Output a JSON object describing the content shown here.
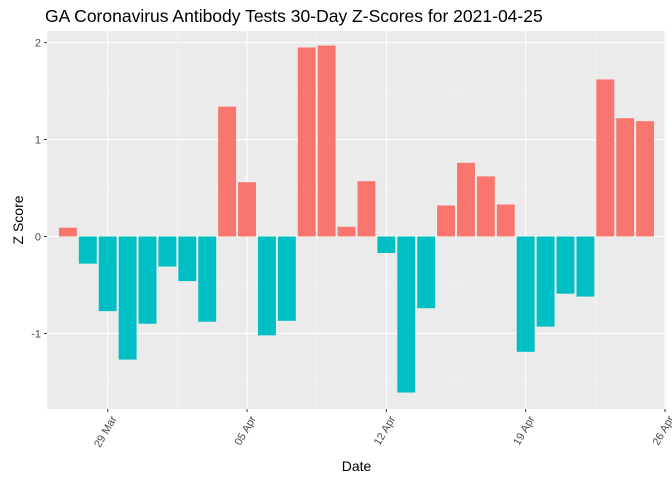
{
  "chart_data": {
    "type": "bar",
    "title": "GA Coronavirus Antibody Tests 30-Day Z-Scores for 2021-04-25",
    "xlabel": "Date",
    "ylabel": "Z Score",
    "x_ticks": [
      "29 Mar",
      "05 Apr",
      "12 Apr",
      "19 Apr",
      "26 Apr"
    ],
    "y_ticks": [
      -1,
      0,
      1,
      2
    ],
    "ylim": [
      -1.78,
      2.12
    ],
    "grid": true,
    "legend": "none",
    "categories": [
      "2021-03-27",
      "2021-03-28",
      "2021-03-29",
      "2021-03-30",
      "2021-03-31",
      "2021-04-01",
      "2021-04-02",
      "2021-04-03",
      "2021-04-04",
      "2021-04-05",
      "2021-04-06",
      "2021-04-07",
      "2021-04-08",
      "2021-04-09",
      "2021-04-10",
      "2021-04-11",
      "2021-04-12",
      "2021-04-13",
      "2021-04-14",
      "2021-04-15",
      "2021-04-16",
      "2021-04-17",
      "2021-04-18",
      "2021-04-19",
      "2021-04-20",
      "2021-04-21",
      "2021-04-22",
      "2021-04-23",
      "2021-04-24",
      "2021-04-25"
    ],
    "values": [
      0.09,
      -0.28,
      -0.77,
      -1.27,
      -0.9,
      -0.31,
      -0.46,
      -0.88,
      1.34,
      0.56,
      -1.02,
      -0.87,
      1.95,
      1.97,
      0.1,
      0.57,
      -0.17,
      -1.61,
      -0.74,
      0.32,
      0.76,
      0.62,
      0.33,
      -1.19,
      -0.93,
      -0.59,
      -0.62,
      1.62,
      1.22,
      1.19
    ],
    "colors": {
      "positive": "#F8766D",
      "negative": "#00BFC4",
      "panel": "#EBEBEB",
      "grid_major": "#FFFFFF",
      "grid_minor": "#F5F5F5"
    }
  }
}
